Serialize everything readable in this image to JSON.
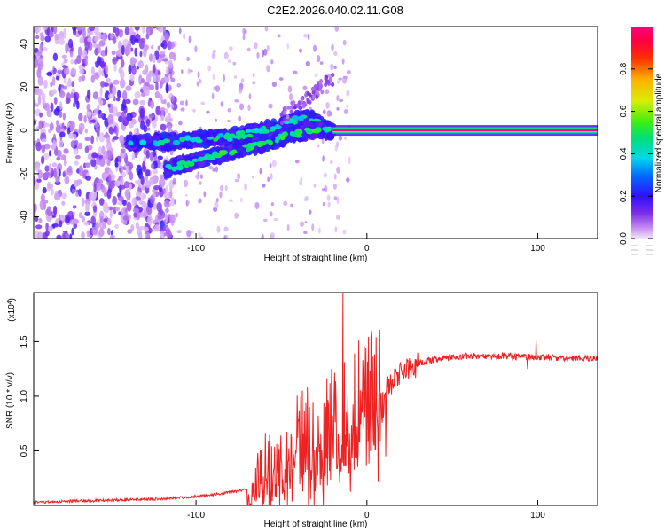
{
  "page_title": "C2E2.2026.040.02.11.G08",
  "chart_data": [
    {
      "type": "heatmap",
      "title": "C2E2.2026.040.02.11.G08",
      "xlabel": "Height of straight line (km)",
      "ylabel": "Frequency (Hz)",
      "xlim": [
        -195,
        135
      ],
      "ylim": [
        -50,
        48
      ],
      "xticks": [
        -100,
        0,
        100
      ],
      "xtick_labels": [
        "-100",
        "0",
        "100"
      ],
      "yticks": [
        -40,
        -20,
        0,
        20,
        40
      ],
      "ytick_labels": [
        "-40",
        "-20",
        "0",
        "20",
        "40"
      ],
      "colorbar": {
        "label": "Normalized spectral amplitude",
        "range": [
          0,
          1
        ],
        "ticks": [
          0.0,
          0.2,
          0.4,
          0.6,
          0.8
        ],
        "tick_labels": [
          "0.0",
          "0.2",
          "0.4",
          "0.6",
          "0.8"
        ]
      },
      "features": [
        {
          "name": "noise-region",
          "x_range": [
            -195,
            -120
          ],
          "freq_range": [
            -50,
            48
          ],
          "amplitude": 0.15
        },
        {
          "name": "upper-branch",
          "points": [
            [
              -140,
              -6
            ],
            [
              -110,
              -5
            ],
            [
              -80,
              -3
            ],
            [
              -60,
              0
            ],
            [
              -45,
              4
            ],
            [
              -35,
              6
            ],
            [
              -25,
              2
            ]
          ],
          "amplitude": 0.35
        },
        {
          "name": "lower-branch",
          "points": [
            [
              -118,
              -18
            ],
            [
              -100,
              -14
            ],
            [
              -80,
              -10
            ],
            [
              -60,
              -6
            ],
            [
              -45,
              -2
            ],
            [
              -30,
              0
            ],
            [
              -20,
              0
            ]
          ],
          "amplitude": 0.4
        },
        {
          "name": "steady-carrier",
          "x_range": [
            -20,
            135
          ],
          "freq": 0,
          "amplitude": 1.0
        }
      ]
    },
    {
      "type": "line",
      "title": "",
      "xlabel": "Height of straight line (km)",
      "ylabel": "SNR (10 * v/v)",
      "y_multiplier": "(x10",
      "y_multiplier_exp": "4",
      "y_multiplier_close": ")",
      "xlim": [
        -195,
        135
      ],
      "ylim": [
        0,
        1.95
      ],
      "xticks": [
        -100,
        0,
        100
      ],
      "xtick_labels": [
        "-100",
        "0",
        "100"
      ],
      "yticks": [
        0.5,
        1.0,
        1.5
      ],
      "ytick_labels": [
        "0.5",
        "1.0",
        "1.5"
      ],
      "series": [
        {
          "name": "SNR",
          "color": "#ee2222",
          "x": [
            -195,
            -170,
            -145,
            -120,
            -100,
            -90,
            -80,
            -70,
            -60,
            -50,
            -40,
            -30,
            -20,
            -15,
            -10,
            -5,
            0,
            10,
            20,
            30,
            40,
            60,
            80,
            90,
            100,
            120,
            135
          ],
          "y": [
            0.03,
            0.04,
            0.05,
            0.06,
            0.08,
            0.1,
            0.12,
            0.15,
            0.25,
            0.4,
            0.5,
            0.55,
            0.6,
            0.65,
            0.75,
            0.85,
            0.95,
            1.05,
            1.2,
            1.3,
            1.34,
            1.37,
            1.37,
            1.36,
            1.36,
            1.35,
            1.35
          ],
          "features": [
            {
              "x": -14,
              "y": 1.95,
              "label": "peak"
            },
            {
              "x": 11,
              "y": 0.45,
              "label": "dip"
            },
            {
              "x": 94,
              "y": 1.25,
              "label": "dip"
            },
            {
              "x": 99,
              "y": 1.52,
              "label": "spike"
            }
          ]
        }
      ]
    }
  ]
}
